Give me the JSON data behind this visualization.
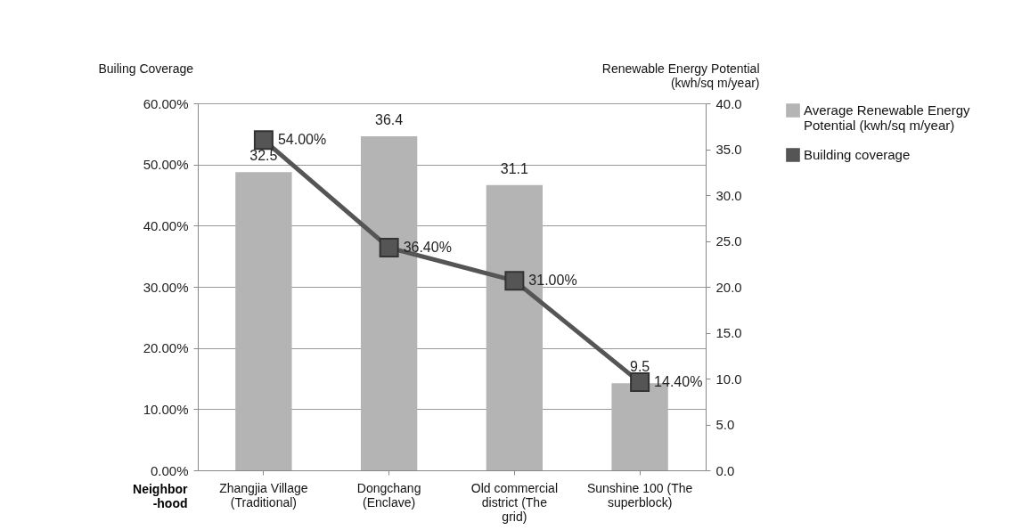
{
  "chart_data": {
    "type": "bar",
    "ylabel": "Builing Coverage",
    "y2label": "Renewable Energy Potential\n(kwh/sq m/year)",
    "xlabel": "Neighbor\n-hood",
    "categories": [
      "Zhangjia Village (Traditional)",
      "Dongchang (Enclave)",
      "Old commercial district  (The grid)",
      "Sunshine 100 (The superblock)"
    ],
    "series": [
      {
        "name": "Average Renewable Energy Potential (kwh/sq m/year)",
        "axis": "y2",
        "color": "#b4b4b4",
        "values": [
          32.5,
          36.4,
          31.1,
          9.5
        ],
        "value_labels": [
          "32.5",
          "36.4",
          "31.1",
          "9.5"
        ]
      },
      {
        "name": "Building coverage",
        "type": "line",
        "axis": "y",
        "color": "#555555",
        "marker": "square",
        "values": [
          54,
          36.4,
          31,
          14.4
        ],
        "value_labels": [
          "54.00%",
          "36.40%",
          "31.00%",
          "14.40%"
        ]
      }
    ],
    "ylim": [
      0,
      60
    ],
    "yticks": [
      {
        "value": 0,
        "label": "0.00%"
      },
      {
        "value": 10,
        "label": "10.00%"
      },
      {
        "value": 20,
        "label": "20.00%"
      },
      {
        "value": 30,
        "label": "30.00%"
      },
      {
        "value": 40,
        "label": "40.00%"
      },
      {
        "value": 50,
        "label": "50.00%"
      },
      {
        "value": 60,
        "label": "60.00%"
      }
    ],
    "y2lim": [
      0,
      40
    ],
    "y2ticks": [
      {
        "value": 0,
        "label": "0.0"
      },
      {
        "value": 5,
        "label": "5.0"
      },
      {
        "value": 10,
        "label": "10.0"
      },
      {
        "value": 15,
        "label": "15.0"
      },
      {
        "value": 20,
        "label": "20.0"
      },
      {
        "value": 25,
        "label": "25.0"
      },
      {
        "value": 30,
        "label": "30.0"
      },
      {
        "value": 35,
        "label": "35.0"
      },
      {
        "value": 40,
        "label": "40.0"
      }
    ],
    "grid": "y",
    "legend": "right"
  }
}
